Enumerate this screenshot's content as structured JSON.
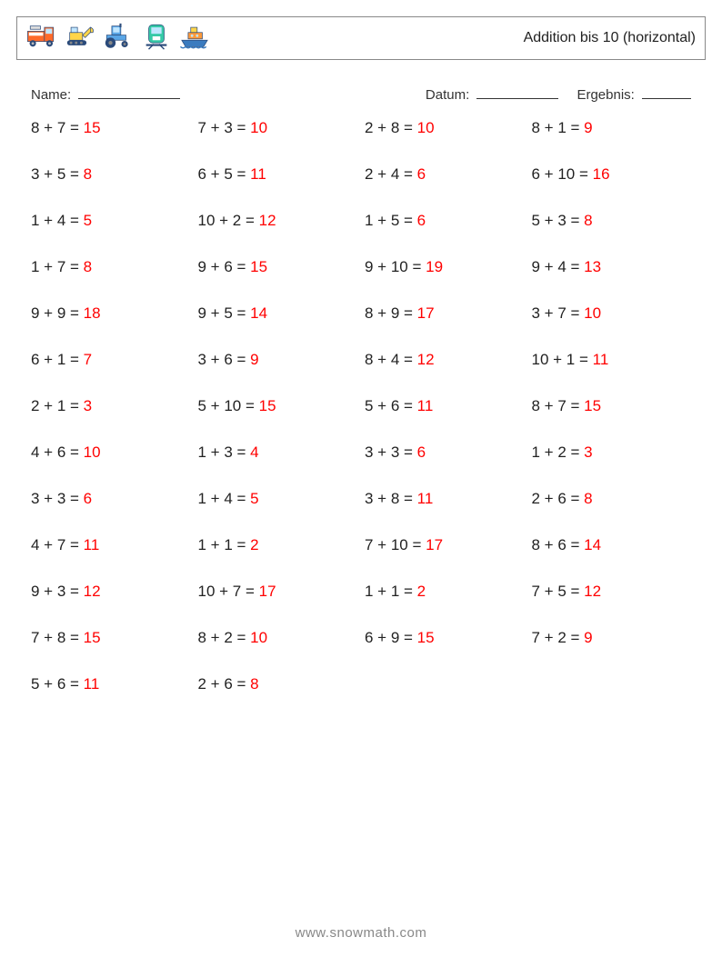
{
  "header": {
    "title": "Addition bis 10 (horizontal)",
    "icons": [
      "firetruck",
      "excavator",
      "tractor",
      "train",
      "ship"
    ]
  },
  "meta": {
    "name_label": "Name:",
    "name_blank_width": 112,
    "date_label": "Datum:",
    "date_blank_width": 90,
    "result_label": "Ergebnis:",
    "result_blank_width": 54
  },
  "worksheet": {
    "columns": 4,
    "rows": 13,
    "problem_fontsize": 17,
    "text_color": "#222222",
    "answer_color": "#ff0000",
    "problems": [
      {
        "a": 8,
        "b": 7,
        "ans": 15
      },
      {
        "a": 7,
        "b": 3,
        "ans": 10
      },
      {
        "a": 2,
        "b": 8,
        "ans": 10
      },
      {
        "a": 8,
        "b": 1,
        "ans": 9
      },
      {
        "a": 3,
        "b": 5,
        "ans": 8
      },
      {
        "a": 6,
        "b": 5,
        "ans": 11
      },
      {
        "a": 2,
        "b": 4,
        "ans": 6
      },
      {
        "a": 6,
        "b": 10,
        "ans": 16
      },
      {
        "a": 1,
        "b": 4,
        "ans": 5
      },
      {
        "a": 10,
        "b": 2,
        "ans": 12
      },
      {
        "a": 1,
        "b": 5,
        "ans": 6
      },
      {
        "a": 5,
        "b": 3,
        "ans": 8
      },
      {
        "a": 1,
        "b": 7,
        "ans": 8
      },
      {
        "a": 9,
        "b": 6,
        "ans": 15
      },
      {
        "a": 9,
        "b": 10,
        "ans": 19
      },
      {
        "a": 9,
        "b": 4,
        "ans": 13
      },
      {
        "a": 9,
        "b": 9,
        "ans": 18
      },
      {
        "a": 9,
        "b": 5,
        "ans": 14
      },
      {
        "a": 8,
        "b": 9,
        "ans": 17
      },
      {
        "a": 3,
        "b": 7,
        "ans": 10
      },
      {
        "a": 6,
        "b": 1,
        "ans": 7
      },
      {
        "a": 3,
        "b": 6,
        "ans": 9
      },
      {
        "a": 8,
        "b": 4,
        "ans": 12
      },
      {
        "a": 10,
        "b": 1,
        "ans": 11
      },
      {
        "a": 2,
        "b": 1,
        "ans": 3
      },
      {
        "a": 5,
        "b": 10,
        "ans": 15
      },
      {
        "a": 5,
        "b": 6,
        "ans": 11
      },
      {
        "a": 8,
        "b": 7,
        "ans": 15
      },
      {
        "a": 4,
        "b": 6,
        "ans": 10
      },
      {
        "a": 1,
        "b": 3,
        "ans": 4
      },
      {
        "a": 3,
        "b": 3,
        "ans": 6
      },
      {
        "a": 1,
        "b": 2,
        "ans": 3
      },
      {
        "a": 3,
        "b": 3,
        "ans": 6
      },
      {
        "a": 1,
        "b": 4,
        "ans": 5
      },
      {
        "a": 3,
        "b": 8,
        "ans": 11
      },
      {
        "a": 2,
        "b": 6,
        "ans": 8
      },
      {
        "a": 4,
        "b": 7,
        "ans": 11
      },
      {
        "a": 1,
        "b": 1,
        "ans": 2
      },
      {
        "a": 7,
        "b": 10,
        "ans": 17
      },
      {
        "a": 8,
        "b": 6,
        "ans": 14
      },
      {
        "a": 9,
        "b": 3,
        "ans": 12
      },
      {
        "a": 10,
        "b": 7,
        "ans": 17
      },
      {
        "a": 1,
        "b": 1,
        "ans": 2
      },
      {
        "a": 7,
        "b": 5,
        "ans": 12
      },
      {
        "a": 7,
        "b": 8,
        "ans": 15
      },
      {
        "a": 8,
        "b": 2,
        "ans": 10
      },
      {
        "a": 6,
        "b": 9,
        "ans": 15
      },
      {
        "a": 7,
        "b": 2,
        "ans": 9
      },
      {
        "a": 5,
        "b": 6,
        "ans": 11
      },
      {
        "a": 2,
        "b": 6,
        "ans": 8
      }
    ]
  },
  "footer": {
    "text": "www.snowmath.com",
    "color": "#888888"
  }
}
